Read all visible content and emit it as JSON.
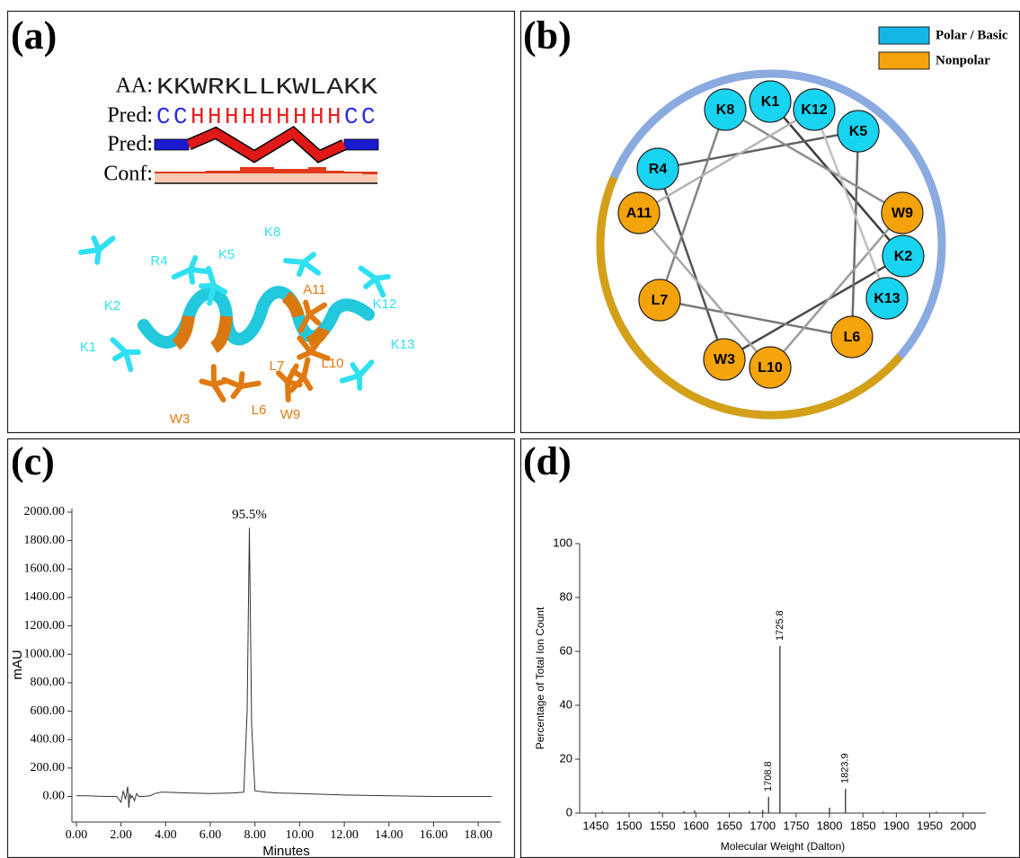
{
  "panel_labels": [
    "(a)",
    "(b)",
    "(c)",
    "(d)"
  ],
  "panel_a": {
    "aa_label": "AA:",
    "aa_sequence": "KKWRKLLKWLAKK",
    "pred_label": "Pred:",
    "pred_sequence": "CCHHHHHHHHHCC",
    "pred_colors": {
      "C": "#2a2ae8",
      "H": "#e82020"
    },
    "pred_bar_label": "Pred:",
    "conf_label": "Conf:",
    "residues": [
      {
        "label": "K1",
        "color": "#2fe0f0"
      },
      {
        "label": "K2",
        "color": "#2fe0f0"
      },
      {
        "label": "W3",
        "color": "#e07a10"
      },
      {
        "label": "R4",
        "color": "#2fe0f0"
      },
      {
        "label": "K5",
        "color": "#2fe0f0"
      },
      {
        "label": "L6",
        "color": "#e07a10"
      },
      {
        "label": "L7",
        "color": "#e07a10"
      },
      {
        "label": "K8",
        "color": "#2fe0f0"
      },
      {
        "label": "W9",
        "color": "#e07a10"
      },
      {
        "label": "L10",
        "color": "#e07a10"
      },
      {
        "label": "A11",
        "color": "#e07a10"
      },
      {
        "label": "K12",
        "color": "#2fe0f0"
      },
      {
        "label": "K13",
        "color": "#2fe0f0"
      }
    ]
  },
  "panel_b": {
    "legend": [
      {
        "label": "Polar / Basic",
        "color": "#13b7e6"
      },
      {
        "label": "Nonpolar",
        "color": "#f5a30a"
      }
    ],
    "nodes": [
      {
        "label": "K1",
        "color": "#18d4f0"
      },
      {
        "label": "K2",
        "color": "#18d4f0"
      },
      {
        "label": "W3",
        "color": "#f5a30a"
      },
      {
        "label": "R4",
        "color": "#18d4f0"
      },
      {
        "label": "K5",
        "color": "#18d4f0"
      },
      {
        "label": "L6",
        "color": "#f5a30a"
      },
      {
        "label": "L7",
        "color": "#f5a30a"
      },
      {
        "label": "K8",
        "color": "#18d4f0"
      },
      {
        "label": "W9",
        "color": "#f5a30a"
      },
      {
        "label": "L10",
        "color": "#f5a30a"
      },
      {
        "label": "A11",
        "color": "#f5a30a"
      },
      {
        "label": "K12",
        "color": "#18d4f0"
      },
      {
        "label": "K13",
        "color": "#18d4f0"
      }
    ]
  },
  "chart_data": [
    {
      "type": "line",
      "color": "#333333",
      "x_label": "Minutes",
      "y_label": "mAU",
      "annotation": "95.5%",
      "x": [
        0,
        0.5,
        1.0,
        1.5,
        1.8,
        2.0,
        2.1,
        2.2,
        2.3,
        2.35,
        2.4,
        2.45,
        2.5,
        2.6,
        2.7,
        2.8,
        3.0,
        3.3,
        3.5,
        3.8,
        4.0,
        5.0,
        6.0,
        7.0,
        7.5,
        7.65,
        7.75,
        7.85,
        8.0,
        8.5,
        9,
        10,
        12,
        14,
        16,
        18,
        18.6
      ],
      "values": [
        5,
        5,
        2,
        0,
        0,
        -40,
        40,
        -20,
        70,
        -80,
        20,
        -10,
        5,
        -30,
        20,
        0,
        0,
        5,
        20,
        30,
        30,
        25,
        20,
        25,
        30,
        600,
        1890,
        500,
        40,
        30,
        25,
        20,
        10,
        5,
        0,
        0,
        0
      ],
      "xlim": [
        -0.2,
        19.0
      ],
      "ylim": [
        -180,
        2000
      ],
      "xticks": [
        {
          "value": 0,
          "label": "0.00"
        },
        {
          "value": 2,
          "label": "2.00"
        },
        {
          "value": 4,
          "label": "4.00"
        },
        {
          "value": 6,
          "label": "6.00"
        },
        {
          "value": 8,
          "label": "8.00"
        },
        {
          "value": 10,
          "label": "10.00"
        },
        {
          "value": 12,
          "label": "12.00"
        },
        {
          "value": 14,
          "label": "14.00"
        },
        {
          "value": 16,
          "label": "16.00"
        },
        {
          "value": 18,
          "label": "18.00"
        }
      ],
      "yticks": [
        {
          "value": 0,
          "label": "0.00"
        },
        {
          "value": 200,
          "label": "200.00"
        },
        {
          "value": 400,
          "label": "400.00"
        },
        {
          "value": 600,
          "label": "600.00"
        },
        {
          "value": 800,
          "label": "800.00"
        },
        {
          "value": 1000,
          "label": "1000.00"
        },
        {
          "value": 1200,
          "label": "1200.00"
        },
        {
          "value": 1400,
          "label": "1400.00"
        },
        {
          "value": 1600,
          "label": "1600.00"
        },
        {
          "value": 1800,
          "label": "1800.00"
        },
        {
          "value": 2000,
          "label": "2000.00"
        }
      ]
    },
    {
      "type": "stem",
      "color": "#333333",
      "x_label": "Molecular Weight (Dalton)",
      "y_label": "Percentage of Total Ion Count",
      "x": [
        1460,
        1545,
        1582,
        1598,
        1680,
        1700,
        1708.8,
        1725.8,
        1800,
        1823.9,
        1880,
        1960
      ],
      "values": [
        0.5,
        0.5,
        0.7,
        1,
        0.8,
        1.2,
        6,
        62,
        2,
        9,
        0.5,
        0.5
      ],
      "peak_labels": [
        1708.8,
        1725.8,
        1823.9
      ],
      "xlim": [
        1426,
        2034
      ],
      "ylim": [
        0,
        100
      ],
      "xticks": [
        1450,
        1500,
        1550,
        1600,
        1650,
        1700,
        1750,
        1800,
        1850,
        1900,
        1950,
        2000
      ],
      "yticks": [
        0,
        20,
        40,
        60,
        80,
        100
      ]
    }
  ]
}
